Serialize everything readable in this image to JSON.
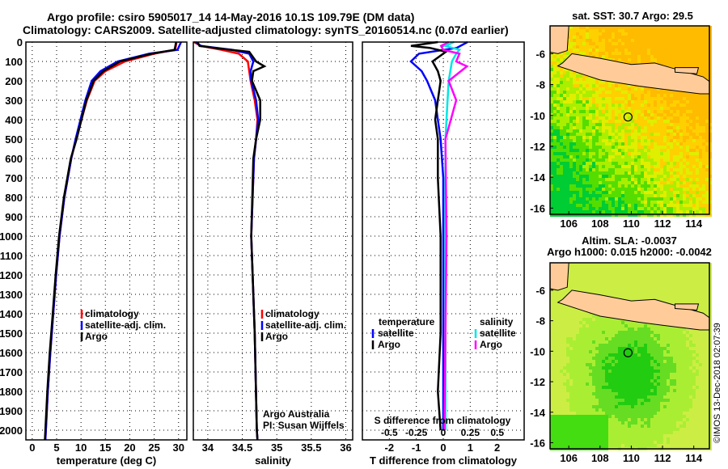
{
  "title_line1": "Argo profile: csiro 5905017_14 14-May-2016 10.1S 109.79E (DM data)",
  "title_line2": "Climatology: CARS2009. Satellite-adjusted climatology: synTS_20160514.nc (0.07d earlier)",
  "credit": "©IMOS 13-Dec-2018 02:07:39",
  "colors": {
    "climatology": "#ff0000",
    "satellite": "#0000ff",
    "argo": "#000000",
    "sal_satellite": "#00e5e5",
    "sal_argo": "#ff00ff",
    "land": "#ffcc99"
  },
  "chart_data": [
    {
      "type": "line",
      "name": "temperature",
      "xlabel": "temperature (deg C)",
      "ylabel": "",
      "xlim": [
        -1.3,
        31.7
      ],
      "ylim": [
        2050,
        0
      ],
      "xticks": [
        "0",
        "5",
        "10",
        "15",
        "20",
        "25",
        "30"
      ],
      "xtick_values": [
        0,
        5,
        10,
        15,
        20,
        25,
        30
      ],
      "yticks": [
        "0",
        "100",
        "200",
        "300",
        "400",
        "500",
        "600",
        "700",
        "800",
        "900",
        "1000",
        "1100",
        "1200",
        "1300",
        "1400",
        "1500",
        "1600",
        "1700",
        "1800",
        "1900",
        "2000"
      ],
      "legend": [
        "climatology",
        "satellite-adj. clim.",
        "Argo"
      ],
      "series": [
        {
          "name": "climatology",
          "color": "#ff0000",
          "depth": [
            0,
            40,
            60,
            100,
            150,
            200,
            300,
            400,
            500,
            600,
            800,
            1000,
            1200,
            1400,
            1600,
            1800,
            2000,
            2050
          ],
          "values": [
            29.6,
            29.3,
            25,
            19,
            15,
            12.8,
            11.2,
            10.1,
            9,
            8,
            6.6,
            5.6,
            4.9,
            4.3,
            3.7,
            3.2,
            2.8,
            2.7
          ]
        },
        {
          "name": "satellite-adj. clim.",
          "color": "#0000ff",
          "depth": [
            0,
            40,
            60,
            100,
            150,
            200,
            300,
            400,
            500,
            600,
            800,
            1000,
            1200,
            1400,
            1600,
            1800,
            2000,
            2050
          ],
          "values": [
            30.5,
            29.8,
            24,
            17.5,
            14,
            12.2,
            10.9,
            9.9,
            8.9,
            8,
            6.6,
            5.6,
            4.9,
            4.3,
            3.7,
            3.2,
            2.8,
            2.7
          ]
        },
        {
          "name": "Argo",
          "color": "#000000",
          "depth": [
            0,
            40,
            60,
            100,
            150,
            200,
            300,
            400,
            500,
            600,
            800,
            1000,
            1200,
            1400,
            1600,
            1800,
            2000,
            2050
          ],
          "values": [
            29.5,
            29.2,
            24.5,
            18,
            14.6,
            12.6,
            11.1,
            10.1,
            9.1,
            7.9,
            6.5,
            5.5,
            4.8,
            4.2,
            3.6,
            3.1,
            2.7,
            2.6
          ]
        }
      ]
    },
    {
      "type": "line",
      "name": "salinity",
      "xlabel": "salinity",
      "xlim": [
        33.79,
        36.1
      ],
      "ylim": [
        2050,
        0
      ],
      "xticks": [
        "34",
        "34.5",
        "35",
        "35.5",
        "36"
      ],
      "xtick_values": [
        34,
        34.5,
        35,
        35.5,
        36
      ],
      "legend": [
        "climatology",
        "satellite-adj. clim.",
        "Argo"
      ],
      "annotation": [
        "Argo Australia",
        "PI: Susan Wijffels"
      ],
      "series": [
        {
          "name": "climatology",
          "color": "#ff0000",
          "depth": [
            0,
            20,
            40,
            60,
            100,
            150,
            200,
            300,
            400,
            500,
            600,
            1000,
            1500,
            2000,
            2050
          ],
          "values": [
            33.8,
            33.9,
            34.2,
            34.45,
            34.58,
            34.6,
            34.62,
            34.68,
            34.72,
            34.7,
            34.67,
            34.63,
            34.68,
            34.71,
            34.72
          ]
        },
        {
          "name": "satellite-adj. clim.",
          "color": "#0000ff",
          "depth": [
            0,
            20,
            40,
            60,
            100,
            150,
            200,
            300,
            400,
            500,
            600,
            1000,
            1500,
            2000,
            2050
          ],
          "values": [
            33.82,
            33.9,
            34.35,
            34.6,
            34.66,
            34.62,
            34.63,
            34.7,
            34.73,
            34.7,
            34.67,
            34.63,
            34.68,
            34.71,
            34.72
          ]
        },
        {
          "name": "Argo",
          "color": "#000000",
          "depth": [
            0,
            20,
            35,
            50,
            100,
            125,
            150,
            200,
            300,
            400,
            500,
            600,
            1000,
            1500,
            2000,
            2050
          ],
          "values": [
            33.85,
            33.88,
            34.2,
            34.6,
            34.7,
            34.82,
            34.66,
            34.64,
            34.76,
            34.76,
            34.7,
            34.66,
            34.63,
            34.68,
            34.71,
            34.72
          ]
        }
      ]
    },
    {
      "type": "line",
      "name": "difference",
      "xlabel": "T difference from climatology",
      "x2label": "S difference from climatology",
      "xlim": [
        -3,
        3
      ],
      "ylim": [
        2050,
        0
      ],
      "xticks": [
        "-2",
        "-1",
        "0",
        "1",
        "2"
      ],
      "xtick_values": [
        -2,
        -1,
        0,
        1,
        2
      ],
      "x2ticks": [
        "-0.5",
        "-0.25",
        "0",
        "0.25",
        "0.5"
      ],
      "x2tick_values": [
        -0.5,
        -0.25,
        0,
        0.25,
        0.5
      ],
      "legend_temperature": {
        "title": "temperature",
        "items": [
          "satellite",
          "Argo"
        ]
      },
      "legend_salinity": {
        "title": "salinity",
        "items": [
          "satellite",
          "Argo"
        ]
      },
      "series": [
        {
          "name": "temperature satellite",
          "color": "#0000ff",
          "depth": [
            0,
            30,
            60,
            100,
            150,
            200,
            300,
            400,
            500,
            700,
            1000,
            1500,
            2000
          ],
          "values": [
            0.9,
            0.5,
            -0.9,
            -1.2,
            -0.8,
            -0.6,
            -0.3,
            -0.2,
            -0.1,
            0,
            0,
            0,
            0
          ]
        },
        {
          "name": "temperature Argo",
          "color": "#000000",
          "depth": [
            0,
            20,
            30,
            50,
            100,
            150,
            200,
            300,
            400,
            500,
            700,
            1000,
            1500,
            1800,
            2000
          ],
          "values": [
            -0.2,
            -1.2,
            -0.5,
            0.1,
            -0.4,
            -0.2,
            -0.1,
            -0.2,
            -0.3,
            -0.2,
            -0.2,
            -0.1,
            -0.1,
            -0.2,
            -0.1
          ]
        },
        {
          "name": "salinity satellite",
          "color": "#00e5e5",
          "depth": [
            0,
            20,
            40,
            60,
            100,
            200,
            300,
            500,
            1000,
            1500,
            2000
          ],
          "values": [
            0.1,
            0.02,
            0.15,
            0.12,
            0.08,
            0.05,
            0.04,
            0.02,
            0.02,
            0.02,
            0.02
          ]
        },
        {
          "name": "salinity Argo",
          "color": "#ff00ff",
          "depth": [
            0,
            20,
            40,
            60,
            100,
            125,
            200,
            300,
            500,
            1000,
            1500,
            2000
          ],
          "values": [
            0.05,
            -0.02,
            0,
            0.15,
            0.12,
            0.22,
            0.05,
            0.12,
            0.02,
            0.03,
            0.02,
            0.01
          ]
        }
      ]
    },
    {
      "type": "heatmap",
      "name": "sst-map",
      "title": "sat. SST: 30.7 Argo: 29.5",
      "xticks": [
        "106",
        "108",
        "110",
        "112",
        "114"
      ],
      "yticks": [
        "-6",
        "-8",
        "-10",
        "-12",
        "-14",
        "-16"
      ],
      "float_position": [
        109.79,
        -10.1
      ]
    },
    {
      "type": "heatmap",
      "name": "sla-map",
      "title_line1": "Altim. SLA: -0.0037",
      "title_line2": "Argo h1000: 0.015 h2000: -0.0042",
      "xticks": [
        "106",
        "108",
        "110",
        "112",
        "114"
      ],
      "yticks": [
        "-6",
        "-8",
        "-10",
        "-12",
        "-14",
        "-16"
      ],
      "float_position": [
        109.79,
        -10.1
      ]
    }
  ]
}
